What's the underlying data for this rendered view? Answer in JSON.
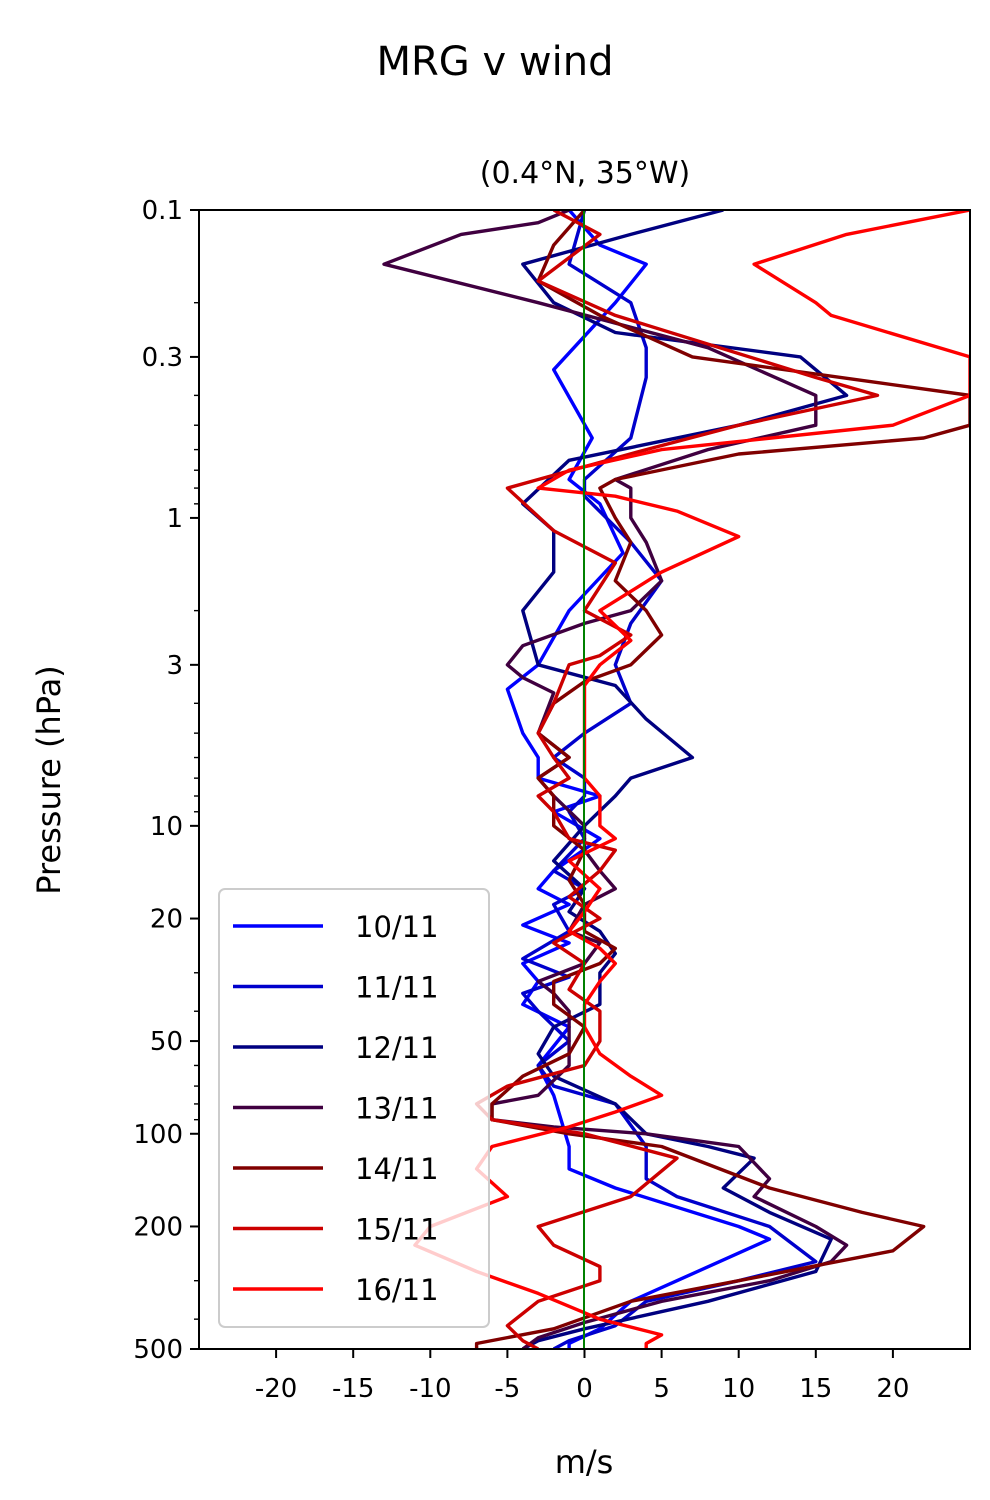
{
  "chart_data": {
    "type": "line",
    "title": "MRG v wind",
    "subtitle": "(0.4°N, 35°W)",
    "xlabel": "m/s",
    "ylabel": "Pressure (hPa)",
    "xlim": [
      -25,
      25
    ],
    "ylim": [
      500,
      0.1
    ],
    "y_scale": "log",
    "x_ticks": [
      -20,
      -15,
      -10,
      -5,
      0,
      5,
      10,
      15,
      20
    ],
    "x_tick_labels": [
      "-20",
      "-15",
      "-10",
      "-5",
      "0",
      "5",
      "10",
      "15",
      "20"
    ],
    "y_ticks": [
      0.1,
      0.3,
      1,
      3,
      10,
      20,
      50,
      100,
      200,
      500
    ],
    "y_tick_labels": [
      "0.1",
      "0.3",
      "1",
      "3",
      "10",
      "20",
      "50",
      "100",
      "200",
      "500"
    ],
    "zero_line_color": "#008000",
    "legend_position": "lower left",
    "series": [
      {
        "name": "10/11",
        "color": "#0000ff",
        "points": [
          [
            -1,
            0.1
          ],
          [
            1,
            0.13
          ],
          [
            4,
            0.15
          ],
          [
            2,
            0.2
          ],
          [
            -2,
            0.33
          ],
          [
            0.5,
            0.55
          ],
          [
            -1,
            0.75
          ],
          [
            1,
            0.9
          ],
          [
            2.5,
            1.3
          ],
          [
            -1,
            2
          ],
          [
            -3,
            3
          ],
          [
            -5,
            3.6
          ],
          [
            -4,
            5
          ],
          [
            -3,
            6
          ],
          [
            -3,
            7
          ],
          [
            1,
            8
          ],
          [
            -2,
            9
          ],
          [
            1,
            11
          ],
          [
            -2,
            14
          ],
          [
            -3,
            16
          ],
          [
            -1,
            18
          ],
          [
            -4,
            21
          ],
          [
            -1,
            24
          ],
          [
            -4,
            28
          ],
          [
            -3,
            32
          ],
          [
            -4,
            38
          ],
          [
            -1,
            45
          ],
          [
            -3,
            60
          ],
          [
            -2,
            75
          ],
          [
            -1,
            110
          ],
          [
            -1,
            130
          ],
          [
            2,
            150
          ],
          [
            10,
            200
          ],
          [
            12,
            220
          ],
          [
            6,
            300
          ],
          [
            3,
            350
          ],
          [
            1,
            430
          ],
          [
            -1,
            480
          ],
          [
            -1,
            500
          ]
        ]
      },
      {
        "name": "11/11",
        "color": "#0000cc",
        "points": [
          [
            0,
            0.1
          ],
          [
            -1,
            0.15
          ],
          [
            3,
            0.2
          ],
          [
            4,
            0.28
          ],
          [
            4,
            0.35
          ],
          [
            3,
            0.55
          ],
          [
            0,
            0.75
          ],
          [
            0,
            0.85
          ],
          [
            3,
            1.2
          ],
          [
            5,
            1.6
          ],
          [
            3,
            2.2
          ],
          [
            2,
            3
          ],
          [
            3,
            4
          ],
          [
            0,
            5
          ],
          [
            -2,
            6
          ],
          [
            0,
            7
          ],
          [
            0,
            8
          ],
          [
            -1,
            9
          ],
          [
            0,
            11
          ],
          [
            -2,
            14
          ],
          [
            0,
            16
          ],
          [
            -2,
            18
          ],
          [
            -1,
            22
          ],
          [
            -4,
            27
          ],
          [
            -1,
            31
          ],
          [
            -4,
            35
          ],
          [
            -3,
            40
          ],
          [
            -1,
            50
          ],
          [
            -3,
            60
          ],
          [
            -2,
            70
          ],
          [
            2,
            80
          ],
          [
            4,
            110
          ],
          [
            4,
            140
          ],
          [
            6,
            160
          ],
          [
            12,
            200
          ],
          [
            15,
            260
          ],
          [
            10,
            300
          ],
          [
            4,
            350
          ],
          [
            2,
            420
          ],
          [
            -1,
            470
          ],
          [
            -2,
            500
          ]
        ]
      },
      {
        "name": "12/11",
        "color": "#000080",
        "points": [
          [
            9,
            0.1
          ],
          [
            3,
            0.12
          ],
          [
            -4,
            0.15
          ],
          [
            -2,
            0.2
          ],
          [
            2,
            0.25
          ],
          [
            14,
            0.3
          ],
          [
            17,
            0.4
          ],
          [
            10,
            0.5
          ],
          [
            -1,
            0.65
          ],
          [
            -4,
            0.9
          ],
          [
            -2,
            1.1
          ],
          [
            -2,
            1.5
          ],
          [
            -4,
            2
          ],
          [
            -3,
            3
          ],
          [
            2,
            3.5
          ],
          [
            4,
            4.5
          ],
          [
            7,
            6
          ],
          [
            3,
            7
          ],
          [
            2,
            8
          ],
          [
            0,
            10
          ],
          [
            -2,
            13
          ],
          [
            0,
            16
          ],
          [
            -1,
            19
          ],
          [
            1,
            22
          ],
          [
            2,
            26
          ],
          [
            1,
            30
          ],
          [
            1,
            38
          ],
          [
            -2,
            45
          ],
          [
            -3,
            55
          ],
          [
            -2,
            65
          ],
          [
            2,
            80
          ],
          [
            4,
            100
          ],
          [
            8,
            110
          ],
          [
            11,
            120
          ],
          [
            9,
            150
          ],
          [
            12,
            180
          ],
          [
            16,
            220
          ],
          [
            15,
            280
          ],
          [
            8,
            350
          ],
          [
            0,
            430
          ],
          [
            -3,
            470
          ],
          [
            -4,
            500
          ]
        ]
      },
      {
        "name": "13/11",
        "color": "#400040",
        "points": [
          [
            -1,
            0.1
          ],
          [
            -3,
            0.11
          ],
          [
            -8,
            0.12
          ],
          [
            -13,
            0.15
          ],
          [
            -3,
            0.2
          ],
          [
            8,
            0.28
          ],
          [
            15,
            0.4
          ],
          [
            15,
            0.5
          ],
          [
            8,
            0.6
          ],
          [
            2,
            0.75
          ],
          [
            3,
            0.8
          ],
          [
            3,
            1
          ],
          [
            4,
            1.2
          ],
          [
            5,
            1.6
          ],
          [
            3,
            2
          ],
          [
            0,
            2.2
          ],
          [
            -4,
            2.6
          ],
          [
            -5,
            3
          ],
          [
            -4,
            3.3
          ],
          [
            -2,
            3.7
          ],
          [
            -3,
            5
          ],
          [
            -1,
            6
          ],
          [
            -3,
            7
          ],
          [
            -2,
            8
          ],
          [
            0,
            10
          ],
          [
            0,
            12
          ],
          [
            1,
            14
          ],
          [
            2,
            16
          ],
          [
            0,
            18
          ],
          [
            -1,
            22
          ],
          [
            1,
            24
          ],
          [
            0,
            28
          ],
          [
            -3,
            32
          ],
          [
            -2,
            35
          ],
          [
            -1,
            40
          ],
          [
            -1,
            50
          ],
          [
            -1,
            60
          ],
          [
            -3,
            75
          ],
          [
            -6,
            80
          ],
          [
            -6,
            90
          ],
          [
            -2,
            95
          ],
          [
            4,
            100
          ],
          [
            10,
            110
          ],
          [
            12,
            140
          ],
          [
            11,
            160
          ],
          [
            15,
            200
          ],
          [
            17,
            230
          ],
          [
            16,
            260
          ],
          [
            12,
            300
          ],
          [
            5,
            350
          ],
          [
            0,
            410
          ],
          [
            -3,
            460
          ],
          [
            -4,
            500
          ]
        ]
      },
      {
        "name": "14/11",
        "color": "#800000",
        "points": [
          [
            0,
            0.1
          ],
          [
            -2,
            0.13
          ],
          [
            -3,
            0.17
          ],
          [
            1,
            0.22
          ],
          [
            7,
            0.3
          ],
          [
            25,
            0.4
          ],
          [
            25,
            0.5
          ],
          [
            22,
            0.55
          ],
          [
            10,
            0.62
          ],
          [
            2,
            0.75
          ],
          [
            1,
            0.8
          ],
          [
            2,
            1
          ],
          [
            3,
            1.2
          ],
          [
            2,
            1.6
          ],
          [
            4,
            2
          ],
          [
            5,
            2.4
          ],
          [
            3,
            3
          ],
          [
            0,
            3.4
          ],
          [
            -2,
            4
          ],
          [
            -3,
            5
          ],
          [
            -1,
            6
          ],
          [
            -3,
            7
          ],
          [
            -2,
            8
          ],
          [
            -2,
            10
          ],
          [
            0,
            12
          ],
          [
            -1,
            15
          ],
          [
            0,
            18
          ],
          [
            0,
            22
          ],
          [
            2,
            25
          ],
          [
            1,
            28
          ],
          [
            -2,
            32
          ],
          [
            -2,
            38
          ],
          [
            0,
            45
          ],
          [
            -1,
            55
          ],
          [
            -4,
            65
          ],
          [
            -6,
            80
          ],
          [
            -6,
            90
          ],
          [
            -1,
            100
          ],
          [
            5,
            110
          ],
          [
            12,
            150
          ],
          [
            18,
            180
          ],
          [
            22,
            200
          ],
          [
            20,
            240
          ],
          [
            10,
            300
          ],
          [
            3,
            350
          ],
          [
            -2,
            430
          ],
          [
            -7,
            480
          ],
          [
            -7,
            500
          ]
        ]
      },
      {
        "name": "15/11",
        "color": "#cc0000",
        "points": [
          [
            -2,
            0.1
          ],
          [
            1,
            0.12
          ],
          [
            -3,
            0.17
          ],
          [
            2,
            0.22
          ],
          [
            15,
            0.35
          ],
          [
            19,
            0.4
          ],
          [
            10,
            0.5
          ],
          [
            4,
            0.6
          ],
          [
            -3,
            0.75
          ],
          [
            -5,
            0.8
          ],
          [
            -2,
            1.1
          ],
          [
            2,
            1.4
          ],
          [
            0,
            2
          ],
          [
            3,
            2.4
          ],
          [
            1,
            2.8
          ],
          [
            -1,
            3
          ],
          [
            -2,
            4
          ],
          [
            -3,
            5
          ],
          [
            -2,
            6
          ],
          [
            -1,
            7
          ],
          [
            -3,
            8
          ],
          [
            -2,
            9
          ],
          [
            -1,
            11
          ],
          [
            2,
            12
          ],
          [
            1,
            14
          ],
          [
            -1,
            17
          ],
          [
            1,
            20
          ],
          [
            -2,
            24
          ],
          [
            0,
            28
          ],
          [
            -1,
            34
          ],
          [
            1,
            40
          ],
          [
            1,
            50
          ],
          [
            0,
            60
          ],
          [
            -5,
            70
          ],
          [
            -7,
            80
          ],
          [
            -6,
            90
          ],
          [
            0,
            100
          ],
          [
            6,
            120
          ],
          [
            3,
            160
          ],
          [
            -3,
            200
          ],
          [
            -2,
            230
          ],
          [
            1,
            270
          ],
          [
            1,
            300
          ],
          [
            -3,
            350
          ],
          [
            -5,
            420
          ],
          [
            -4,
            470
          ],
          [
            -3,
            500
          ]
        ]
      },
      {
        "name": "16/11",
        "color": "#ff0000",
        "points": [
          [
            25,
            0.1
          ],
          [
            17,
            0.12
          ],
          [
            11,
            0.15
          ],
          [
            15,
            0.2
          ],
          [
            16,
            0.22
          ],
          [
            25,
            0.3
          ],
          [
            25,
            0.4
          ],
          [
            20,
            0.5
          ],
          [
            5,
            0.6
          ],
          [
            -1,
            0.7
          ],
          [
            -3,
            0.8
          ],
          [
            2,
            0.85
          ],
          [
            6,
            0.95
          ],
          [
            10,
            1.15
          ],
          [
            5,
            1.5
          ],
          [
            1,
            2
          ],
          [
            3,
            2.5
          ],
          [
            1,
            3
          ],
          [
            0,
            3.5
          ],
          [
            0,
            5
          ],
          [
            0,
            6
          ],
          [
            0,
            7
          ],
          [
            1,
            8
          ],
          [
            1,
            10
          ],
          [
            2,
            11
          ],
          [
            -1,
            13
          ],
          [
            1,
            16
          ],
          [
            0,
            19
          ],
          [
            -1,
            22
          ],
          [
            1,
            25
          ],
          [
            2,
            28
          ],
          [
            1,
            32
          ],
          [
            0,
            38
          ],
          [
            0,
            45
          ],
          [
            1,
            55
          ],
          [
            3,
            65
          ],
          [
            5,
            75
          ],
          [
            2,
            85
          ],
          [
            -1,
            95
          ],
          [
            -6,
            110
          ],
          [
            -7,
            130
          ],
          [
            -5,
            160
          ],
          [
            -10,
            200
          ],
          [
            -11,
            230
          ],
          [
            -7,
            280
          ],
          [
            -3,
            330
          ],
          [
            1,
            400
          ],
          [
            5,
            450
          ],
          [
            4,
            480
          ],
          [
            4,
            500
          ]
        ]
      }
    ]
  }
}
